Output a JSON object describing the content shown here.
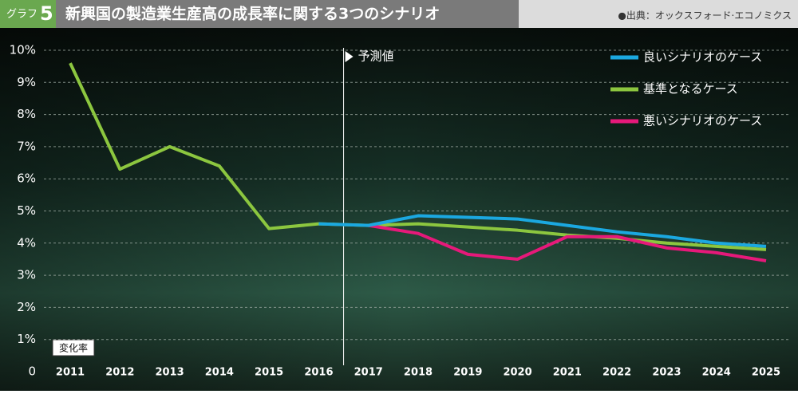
{
  "header": {
    "label": "グラフ",
    "number": "5",
    "title": "新興国の製造業生産高の成長率に関する3つのシナリオ",
    "source": "●出典：オックスフォード·エコノミクス"
  },
  "chart_data": {
    "type": "line",
    "y_axis_label": "変化率",
    "annotation": "予測値",
    "categories": [
      "2011",
      "2012",
      "2013",
      "2014",
      "2015",
      "2016",
      "2017",
      "2018",
      "2019",
      "2020",
      "2021",
      "2022",
      "2023",
      "2024",
      "2025"
    ],
    "series": [
      {
        "name": "基準となるケース",
        "color": "#8cc63f",
        "values": [
          9.6,
          6.3,
          7.0,
          6.4,
          4.45,
          4.6,
          4.55,
          4.6,
          4.5,
          4.4,
          4.25,
          4.15,
          4.0,
          3.9,
          3.8
        ]
      },
      {
        "name": "悪いシナリオのケース",
        "color": "#e6197a",
        "values": [
          null,
          null,
          null,
          null,
          null,
          null,
          4.55,
          4.3,
          3.65,
          3.5,
          4.2,
          4.2,
          3.85,
          3.7,
          3.45
        ]
      },
      {
        "name": "良いシナリオのケース",
        "color": "#1ba8e0",
        "values": [
          null,
          null,
          null,
          null,
          null,
          4.6,
          4.55,
          4.85,
          4.8,
          4.75,
          4.55,
          4.35,
          4.2,
          4.0,
          3.9
        ]
      }
    ],
    "legend_order": [
      2,
      0,
      1
    ],
    "ylim": [
      0,
      10
    ],
    "yticks": [
      0,
      {
        "value": 1,
        "label": "1%"
      },
      {
        "value": 2,
        "label": "2%"
      },
      {
        "value": 3,
        "label": "3%"
      },
      {
        "value": 4,
        "label": "4%"
      },
      {
        "value": 5,
        "label": "5%"
      },
      {
        "value": 6,
        "label": "6%"
      },
      {
        "value": 7,
        "label": "7%"
      },
      {
        "value": 8,
        "label": "8%"
      },
      {
        "value": 9,
        "label": "9%"
      },
      {
        "value": 10,
        "label": "10%"
      }
    ],
    "grid": true
  }
}
